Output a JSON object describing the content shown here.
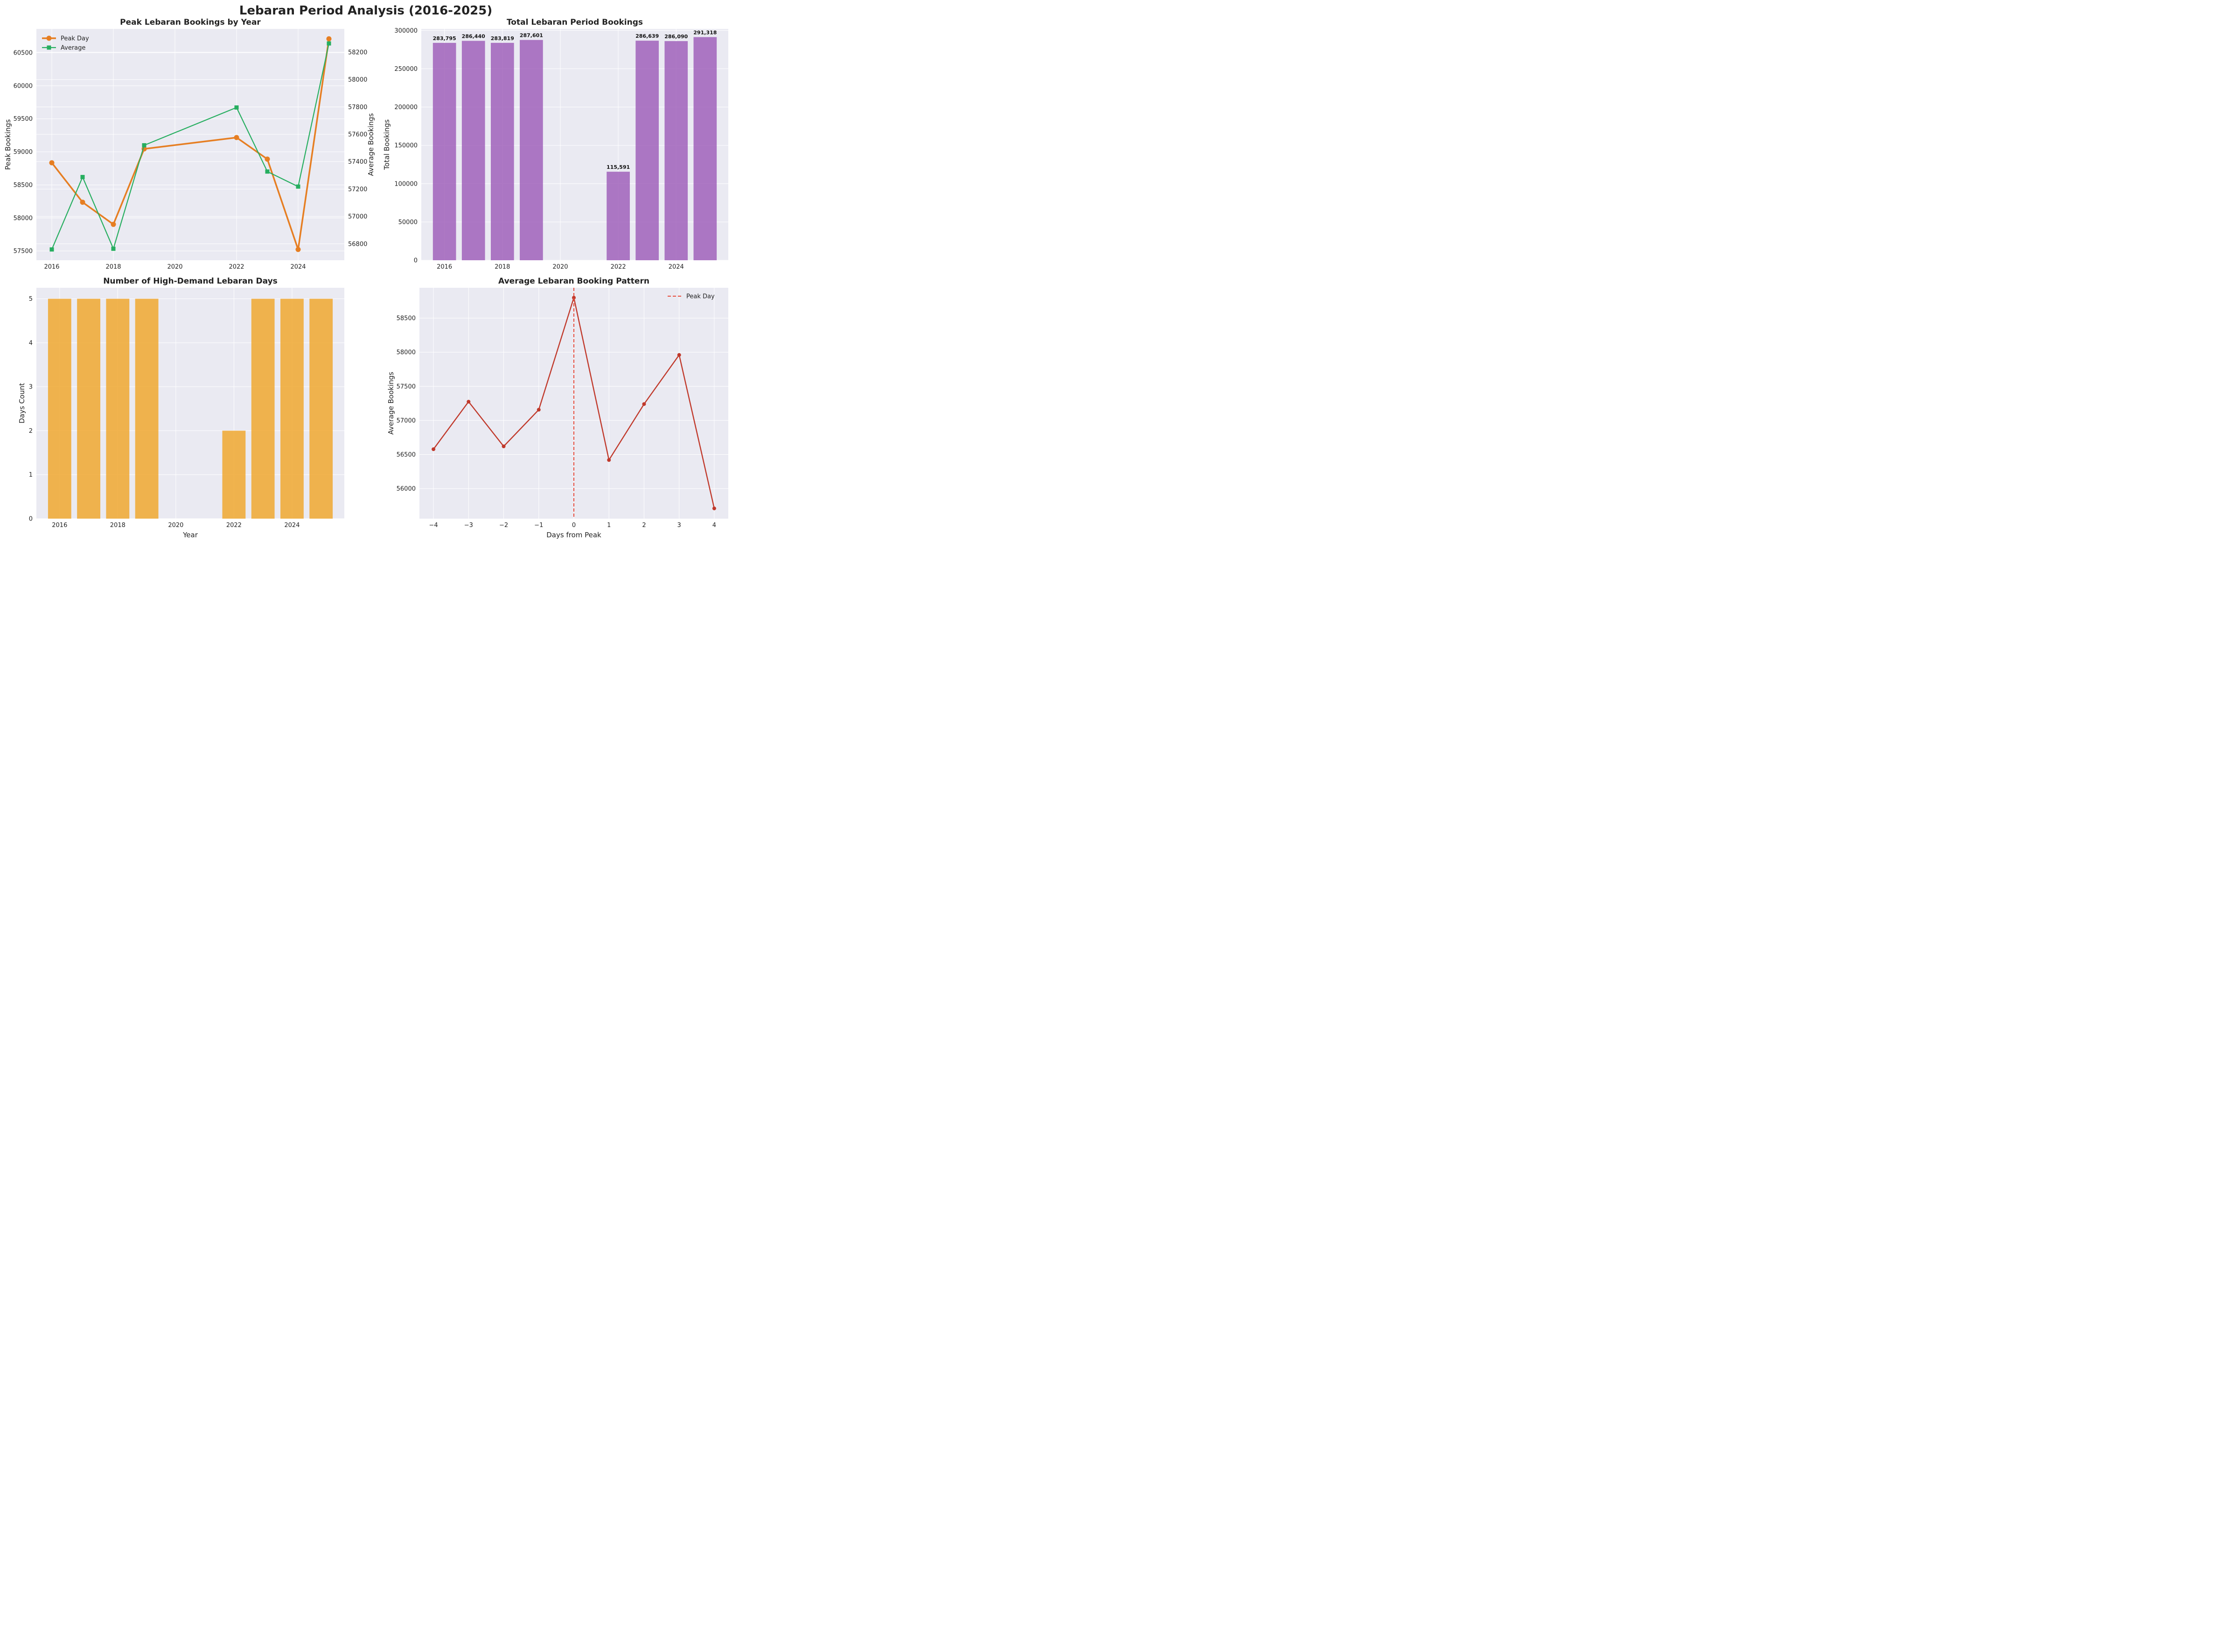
{
  "figure": {
    "title": "Lebaran Period Analysis (2016-2025)"
  },
  "colors": {
    "peak": "#e67e22",
    "average": "#27ae60",
    "total_bars": "#9b59b6",
    "days_bars": "#f0a830",
    "pattern": "#c0392b",
    "peak_line": "#e74c3c"
  },
  "chart_data": [
    {
      "id": "peak",
      "type": "line",
      "title": "Peak Lebaran Bookings by Year",
      "xlabel": "",
      "ylabel": "Peak Bookings",
      "ylabel_right": "Average Bookings",
      "x": [
        2016,
        2017,
        2018,
        2019,
        2022,
        2023,
        2024,
        2025
      ],
      "xlim": [
        2015.5,
        2025.5
      ],
      "xticks": [
        2016,
        2018,
        2020,
        2022,
        2024
      ],
      "xtick_labels": [
        "2016",
        "2018",
        "2020",
        "2022",
        "2024"
      ],
      "ylim": [
        57360,
        60860
      ],
      "yticks": [
        57500,
        58000,
        58500,
        59000,
        59500,
        60000,
        60500
      ],
      "ytick_labels": [
        "57500",
        "58000",
        "58500",
        "59000",
        "59500",
        "60000",
        "60500"
      ],
      "ylim_right": [
        56680,
        58370
      ],
      "yticks_right": [
        56800,
        57000,
        57200,
        57400,
        57600,
        57800,
        58000,
        58200
      ],
      "ytick_labels_right": [
        "56800",
        "57000",
        "57200",
        "57400",
        "57600",
        "57800",
        "58000",
        "58200"
      ],
      "series": [
        {
          "name": "Peak Day",
          "axis": "left",
          "marker": "circle",
          "values": [
            58835,
            58238,
            57903,
            59045,
            59217,
            58890,
            57523,
            60710
          ]
        },
        {
          "name": "Average",
          "axis": "right",
          "marker": "square",
          "values": [
            56759,
            57288,
            56764,
            57520,
            57796,
            57328,
            57218,
            58264
          ]
        }
      ],
      "legend": [
        "Peak Day",
        "Average"
      ],
      "legend_position": "upper-left",
      "grid": true
    },
    {
      "id": "total",
      "type": "bar",
      "title": "Total Lebaran Period Bookings",
      "xlabel": "",
      "ylabel": "Total Bookings",
      "x": [
        2016,
        2017,
        2018,
        2019,
        2022,
        2023,
        2024,
        2025
      ],
      "values": [
        283795,
        286440,
        283819,
        287601,
        115591,
        286639,
        286090,
        291318
      ],
      "value_labels": [
        "283,795",
        "286,440",
        "283,819",
        "287,601",
        "115,591",
        "286,639",
        "286,090",
        "291,318"
      ],
      "xlim": [
        2015.2,
        2025.8
      ],
      "xticks": [
        2016,
        2018,
        2020,
        2022,
        2024
      ],
      "xtick_labels": [
        "2016",
        "2018",
        "2020",
        "2022",
        "2024"
      ],
      "ylim": [
        0,
        302000
      ],
      "yticks": [
        0,
        50000,
        100000,
        150000,
        200000,
        250000,
        300000
      ],
      "ytick_labels": [
        "0",
        "50000",
        "100000",
        "150000",
        "200000",
        "250000",
        "300000"
      ],
      "grid": true
    },
    {
      "id": "days",
      "type": "bar",
      "title": "Number of High-Demand Lebaran Days",
      "xlabel": "Year",
      "ylabel": "Days Count",
      "x": [
        2016,
        2017,
        2018,
        2019,
        2022,
        2023,
        2024,
        2025
      ],
      "values": [
        5,
        5,
        5,
        5,
        2,
        5,
        5,
        5
      ],
      "xlim": [
        2015.2,
        2025.8
      ],
      "xticks": [
        2016,
        2018,
        2020,
        2022,
        2024
      ],
      "xtick_labels": [
        "2016",
        "2018",
        "2020",
        "2022",
        "2024"
      ],
      "ylim": [
        0,
        5.25
      ],
      "yticks": [
        0,
        1,
        2,
        3,
        4,
        5
      ],
      "ytick_labels": [
        "0",
        "1",
        "2",
        "3",
        "4",
        "5"
      ],
      "grid": true
    },
    {
      "id": "pattern",
      "type": "line",
      "title": "Average Lebaran Booking Pattern",
      "xlabel": "Days from Peak",
      "ylabel": "Average Bookings",
      "x": [
        -4,
        -3,
        -2,
        -1,
        0,
        1,
        2,
        3,
        4
      ],
      "values": [
        56578,
        57275,
        56620,
        57157,
        58800,
        56420,
        57240,
        57960,
        55710
      ],
      "xlim": [
        -4.4,
        4.4
      ],
      "xticks": [
        -4,
        -3,
        -2,
        -1,
        0,
        1,
        2,
        3,
        4
      ],
      "xtick_labels": [
        "−4",
        "−3",
        "−2",
        "−1",
        "0",
        "1",
        "2",
        "3",
        "4"
      ],
      "ylim": [
        55560,
        58945
      ],
      "yticks": [
        56000,
        56500,
        57000,
        57500,
        58000,
        58500
      ],
      "ytick_labels": [
        "56000",
        "56500",
        "57000",
        "57500",
        "58000",
        "58500"
      ],
      "reference_line": {
        "x": 0,
        "label": "Peak Day"
      },
      "legend": [
        "Peak Day"
      ],
      "legend_position": "upper-right",
      "grid": true
    }
  ]
}
